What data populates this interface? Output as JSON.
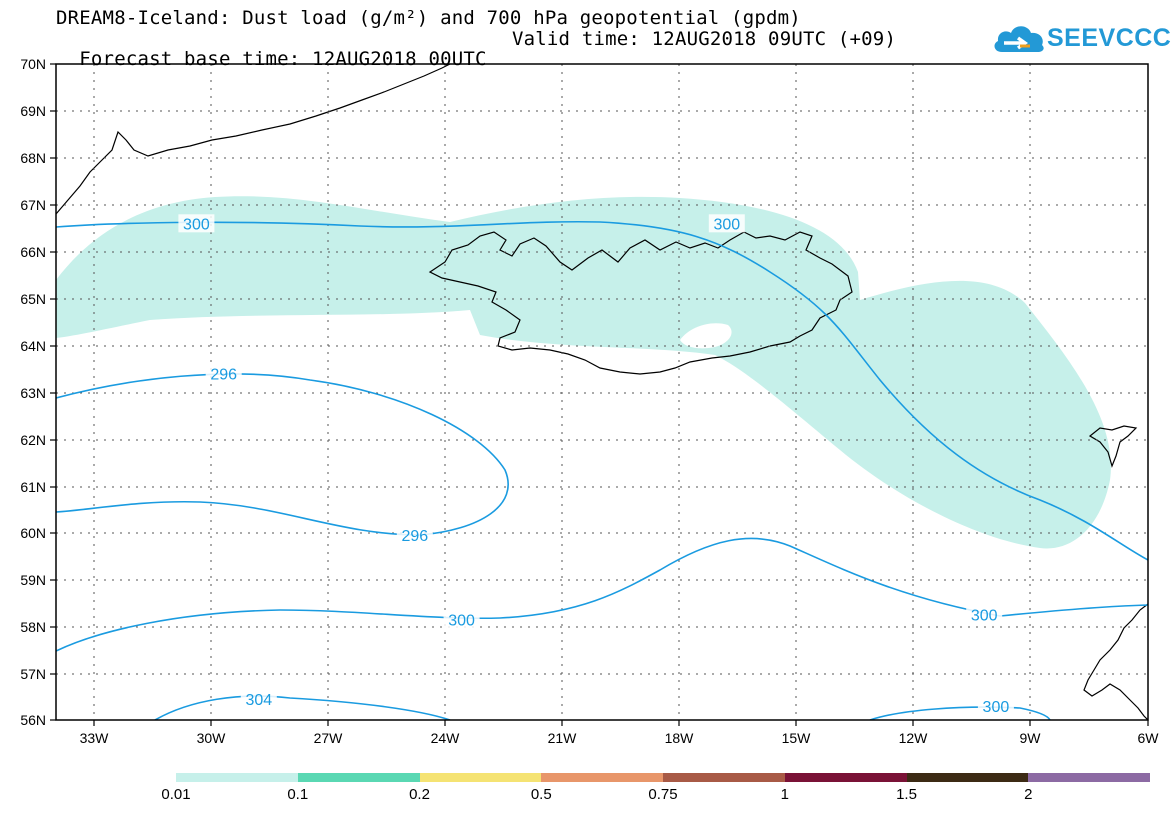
{
  "header": {
    "title_line1": "DREAM8-Iceland: Dust load (g/m²) and 700 hPa geopotential (gpdm)",
    "title_line2_base": "Forecast base time: 12AUG2018 00UTC",
    "title_line2_valid": "Valid time: 12AUG2018 09UTC (+09)"
  },
  "logo": {
    "text": "SEEVCCC",
    "icon": "cloud-icon",
    "color": "#2399d6"
  },
  "map": {
    "region": "Iceland",
    "lon_range": [
      -34,
      -6
    ],
    "lat_range": [
      56,
      70
    ],
    "lat_labels": [
      "70N",
      "69N",
      "68N",
      "67N",
      "66N",
      "65N",
      "64N",
      "63N",
      "62N",
      "61N",
      "60N",
      "59N",
      "58N",
      "57N",
      "56N"
    ],
    "lon_labels": [
      "33W",
      "30W",
      "27W",
      "24W",
      "21W",
      "18W",
      "15W",
      "12W",
      "9W",
      "6W"
    ],
    "grid": "dotted",
    "contour_color": "#1a9be0",
    "dust_fill_color": "#c6f0ea",
    "contour_labels": [
      {
        "value": "300",
        "lon": -30.4,
        "lat": 66.6
      },
      {
        "value": "300",
        "lon": -16.8,
        "lat": 66.6
      },
      {
        "value": "296",
        "lon": -29.7,
        "lat": 63.4
      },
      {
        "value": "296",
        "lon": -24.8,
        "lat": 59.95
      },
      {
        "value": "300",
        "lon": -23.6,
        "lat": 58.15
      },
      {
        "value": "300",
        "lon": -10.2,
        "lat": 58.25
      },
      {
        "value": "304",
        "lon": -28.8,
        "lat": 56.45
      },
      {
        "value": "300",
        "lon": -9.9,
        "lat": 56.3
      }
    ]
  },
  "colorbar": {
    "colors": [
      "#c6f0ea",
      "#5ad8b3",
      "#f5e373",
      "#e8966a",
      "#a85a46",
      "#7a1236",
      "#3c2a14",
      "#8c6aa3"
    ],
    "labels": [
      "0.01",
      "0.1",
      "0.2",
      "0.5",
      "0.75",
      "1",
      "1.5",
      "2"
    ]
  }
}
